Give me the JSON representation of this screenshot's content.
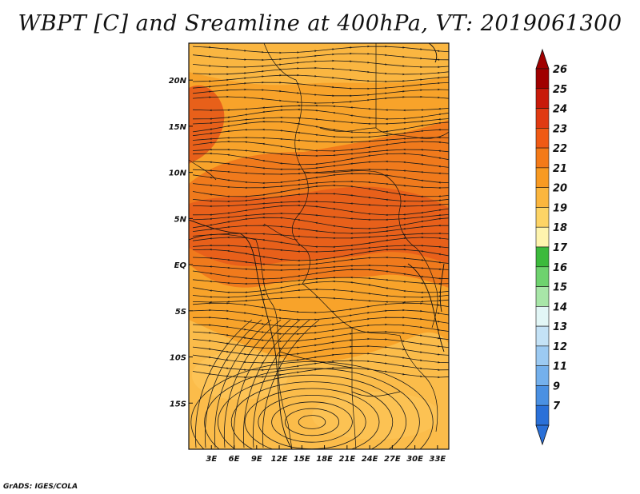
{
  "title": "WBPT [C] and Sreamline at 400hPa, VT: 2019061300",
  "credit": "GrADS: IGES/COLA",
  "map": {
    "lat_labels": [
      "20N",
      "15N",
      "10N",
      "5N",
      "EQ",
      "5S",
      "10S",
      "15S"
    ],
    "lat_values": [
      20,
      15,
      10,
      5,
      0,
      -5,
      -10,
      -15
    ],
    "lon_labels": [
      "3E",
      "6E",
      "9E",
      "12E",
      "15E",
      "18E",
      "21E",
      "24E",
      "27E",
      "30E",
      "33E"
    ],
    "lon_values": [
      3,
      6,
      9,
      12,
      15,
      18,
      21,
      24,
      27,
      30,
      33
    ],
    "lon_range": [
      0,
      34.5
    ],
    "lat_range": [
      -20,
      24
    ]
  },
  "colorbar": {
    "labels": [
      "26",
      "25",
      "24",
      "23",
      "22",
      "21",
      "20",
      "19",
      "18",
      "17",
      "16",
      "15",
      "14",
      "13",
      "12",
      "11",
      "9",
      "7"
    ],
    "colors": [
      "#a00000",
      "#c81a0a",
      "#e03a12",
      "#f05a14",
      "#f47a18",
      "#f89a22",
      "#fbb63e",
      "#fdd466",
      "#fef4ae",
      "#3cba3c",
      "#6ed26e",
      "#a8e6a8",
      "#e2f6f6",
      "#c4e2f6",
      "#9ccaf2",
      "#74b0ec",
      "#4a90e2",
      "#2a70d8"
    ]
  },
  "colors": {
    "field_base": "#f8a32a",
    "field_warm": "#f07a1c",
    "field_hot": "#e8601a",
    "field_cool": "#fbbc4a",
    "streamline": "#1a1a1a"
  }
}
